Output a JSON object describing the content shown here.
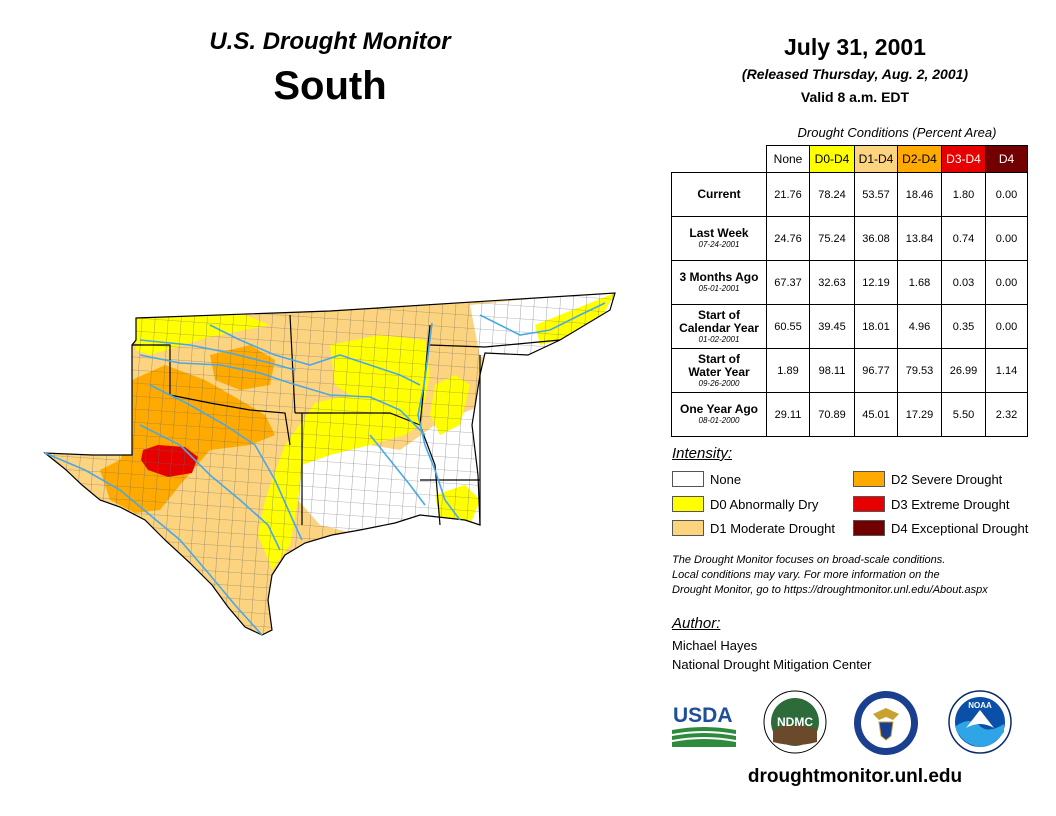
{
  "header": {
    "title": "U.S. Drought Monitor",
    "region": "South"
  },
  "date": {
    "main": "July 31, 2001",
    "released": "(Released Thursday, Aug. 2, 2001)",
    "valid": "Valid 8 a.m. EDT"
  },
  "colors": {
    "none": "#ffffff",
    "d0": "#ffff00",
    "d1": "#fcd37f",
    "d2": "#ffaa00",
    "d3": "#e60000",
    "d4": "#730000",
    "river": "#4aa8e8",
    "usda_blue": "#1f4e9a",
    "usda_green": "#2e8b3e"
  },
  "table": {
    "caption": "Drought Conditions (Percent Area)",
    "columns": [
      "None",
      "D0-D4",
      "D1-D4",
      "D2-D4",
      "D3-D4",
      "D4"
    ],
    "rows": [
      {
        "label": "Current",
        "date": "",
        "values": [
          "21.76",
          "78.24",
          "53.57",
          "18.46",
          "1.80",
          "0.00"
        ]
      },
      {
        "label": "Last Week",
        "date": "07-24-2001",
        "values": [
          "24.76",
          "75.24",
          "36.08",
          "13.84",
          "0.74",
          "0.00"
        ]
      },
      {
        "label": "3 Months Ago",
        "date": "05-01-2001",
        "values": [
          "67.37",
          "32.63",
          "12.19",
          "1.68",
          "0.03",
          "0.00"
        ]
      },
      {
        "label_lines": [
          "Start of",
          "Calendar Year"
        ],
        "date": "01-02-2001",
        "values": [
          "60.55",
          "39.45",
          "18.01",
          "4.96",
          "0.35",
          "0.00"
        ]
      },
      {
        "label_lines": [
          "Start of",
          "Water Year"
        ],
        "date": "09-26-2000",
        "values": [
          "1.89",
          "98.11",
          "96.77",
          "79.53",
          "26.99",
          "1.14"
        ]
      },
      {
        "label": "One Year Ago",
        "date": "08-01-2000",
        "values": [
          "29.11",
          "70.89",
          "45.01",
          "17.29",
          "5.50",
          "2.32"
        ]
      }
    ]
  },
  "legend": {
    "heading": "Intensity:",
    "items": [
      {
        "label": "None"
      },
      {
        "label": "D0 Abnormally Dry"
      },
      {
        "label": "D1 Moderate Drought"
      },
      {
        "label": "D2 Severe Drought"
      },
      {
        "label": "D3 Extreme Drought"
      },
      {
        "label": "D4 Exceptional Drought"
      }
    ]
  },
  "note": {
    "lines": [
      "The Drought Monitor focuses on broad-scale conditions.",
      "Local conditions may vary. For more information on the",
      "Drought Monitor, go to https://droughtmonitor.unl.edu/About.aspx"
    ]
  },
  "author": {
    "heading": "Author:",
    "name": "Michael Hayes",
    "org": "National Drought Mitigation Center"
  },
  "logos": {
    "usda": "USDA",
    "ndmc": "NDMC",
    "noaa": "NOAA",
    "commerce_icon": "eagle-seal-icon"
  },
  "footer": {
    "url": "droughtmonitor.unl.edu"
  }
}
